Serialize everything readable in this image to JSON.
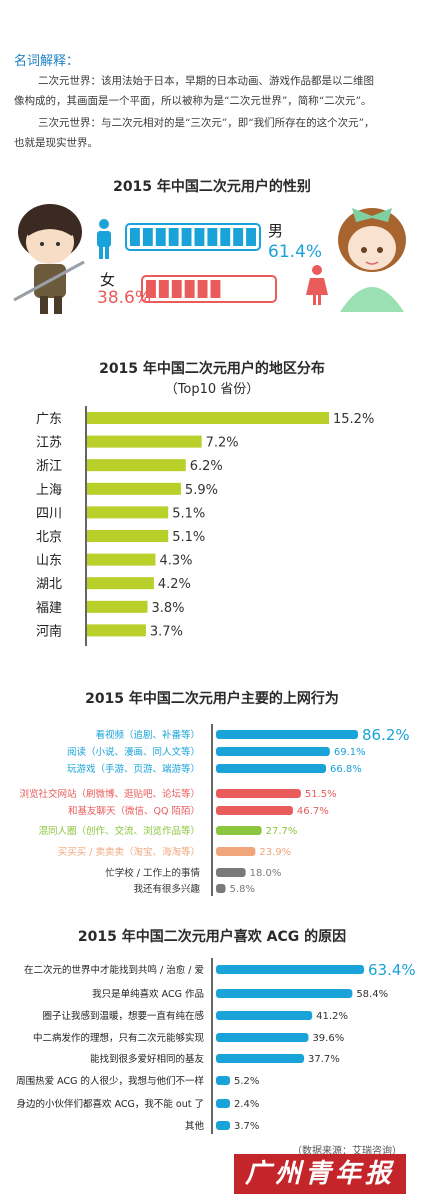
{
  "glossary": {
    "title": "名词解释：",
    "erciyuan_line1": "二次元世界：该用法始于日本，早期的日本动画、游戏作品都是以二维图",
    "erciyuan_line2": "像构成的，其画面是一个平面，所以被称为是“二次元世界”，简称“二次元”。",
    "sanciyuan_line1": "三次元世界：与二次元相对的是“三次元”，即“我们所存在的这个次元”，",
    "sanciyuan_line2": "也就是现实世界。"
  },
  "gender": {
    "title": "2015 年中国二次元用户的性别",
    "male_label": "男",
    "male_value": "61.4%",
    "female_label": "女",
    "female_value": "38.6%",
    "male_color": "#1aa3d9",
    "female_color": "#ea5b5b"
  },
  "region": {
    "title": "2015 年中国二次元用户的地区分布",
    "subtitle": "（Top10 省份）"
  },
  "behavior": {
    "title": "2015 年中国二次元用户主要的上网行为"
  },
  "reasons": {
    "title": "2015 年中国二次元用户喜欢 ACG 的原因"
  },
  "footer": {
    "source": "（数据来源：艾瑞咨询）",
    "brand": "广州青年报"
  },
  "chart_data": [
    {
      "type": "bar",
      "title": "2015 年中国二次元用户的性别",
      "categories": [
        "男",
        "女"
      ],
      "values": [
        61.4,
        38.6
      ],
      "unit": "%"
    },
    {
      "type": "bar",
      "title": "2015 年中国二次元用户的地区分布",
      "subtitle": "（Top10 省份）",
      "categories": [
        "广东",
        "江苏",
        "浙江",
        "上海",
        "四川",
        "北京",
        "山东",
        "湖北",
        "福建",
        "河南"
      ],
      "values": [
        15.2,
        7.2,
        6.2,
        5.9,
        5.1,
        5.1,
        4.3,
        4.2,
        3.8,
        3.7
      ],
      "labels": [
        "15.2%",
        "7.2%",
        "6.2%",
        "5.9%",
        "5.1%",
        "5.1%",
        "4.3%",
        "4.2%",
        "3.8%",
        "3.7%"
      ],
      "color": "#b9cf2a",
      "xlim": [
        0,
        15.2
      ]
    },
    {
      "type": "bar",
      "title": "2015 年中国二次元用户主要的上网行为",
      "categories": [
        "看视频（追剧、补番等）",
        "阅读（小说、漫画、同人文等）",
        "玩游戏（手游、页游、端游等）",
        "浏览社交网站（刷微博、逛贴吧、论坛等）",
        "和基友聊天（微信、QQ 陌陌）",
        "混同人圈（创作、交流、浏览作品等）",
        "买买买 / 卖卖卖（淘宝、海淘等）",
        "忙学校 / 工作上的事情",
        "我还有很多兴趣"
      ],
      "values": [
        86.2,
        69.1,
        66.8,
        51.5,
        46.7,
        27.7,
        23.9,
        18.0,
        5.8
      ],
      "labels": [
        "86.2%",
        "69.1%",
        "66.8%",
        "51.5%",
        "46.7%",
        "27.7%",
        "23.9%",
        "18.0%",
        "5.8%"
      ],
      "colors": [
        "#1aa3d9",
        "#1aa3d9",
        "#1aa3d9",
        "#ea5b5b",
        "#ea5b5b",
        "#8cc63f",
        "#f0a57a",
        "#7a7a7a",
        "#7a7a7a"
      ],
      "xlim": [
        0,
        86.2
      ]
    },
    {
      "type": "bar",
      "title": "2015 年中国二次元用户喜欢 ACG 的原因",
      "categories": [
        "在二次元的世界中才能找到共鸣 / 治愈 / 爱",
        "我只是单纯喜欢 ACG 作品",
        "圈子让我感到温暖，想要一直有纯在感",
        "中二病发作的理想，只有二次元能够实现",
        "能找到很多爱好相同的基友",
        "周围热爱 ACG 的人很少，我想与他们不一样",
        "身边的小伙伴们都喜欢 ACG，我不能 out 了",
        "其他"
      ],
      "values": [
        63.4,
        58.4,
        41.2,
        39.6,
        37.7,
        5.2,
        2.4,
        3.7
      ],
      "labels": [
        "63.4%",
        "58.4%",
        "41.2%",
        "39.6%",
        "37.7%",
        "5.2%",
        "2.4%",
        "3.7%"
      ],
      "color": "#1aa3d9",
      "xlim": [
        0,
        63.4
      ]
    }
  ]
}
